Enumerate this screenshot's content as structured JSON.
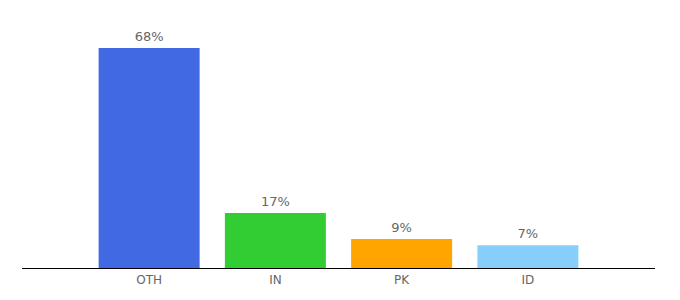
{
  "chart_data": {
    "type": "bar",
    "categories": [
      "OTH",
      "IN",
      "PK",
      "ID"
    ],
    "values": [
      68,
      17,
      9,
      7
    ],
    "value_labels": [
      "68%",
      "17%",
      "9%",
      "7%"
    ],
    "colors": [
      "#4169e1",
      "#32cd32",
      "#ffa500",
      "#87cefa"
    ],
    "ylim": [
      0,
      68
    ],
    "data_labels": true,
    "tick_labels": "x",
    "grid": false
  }
}
